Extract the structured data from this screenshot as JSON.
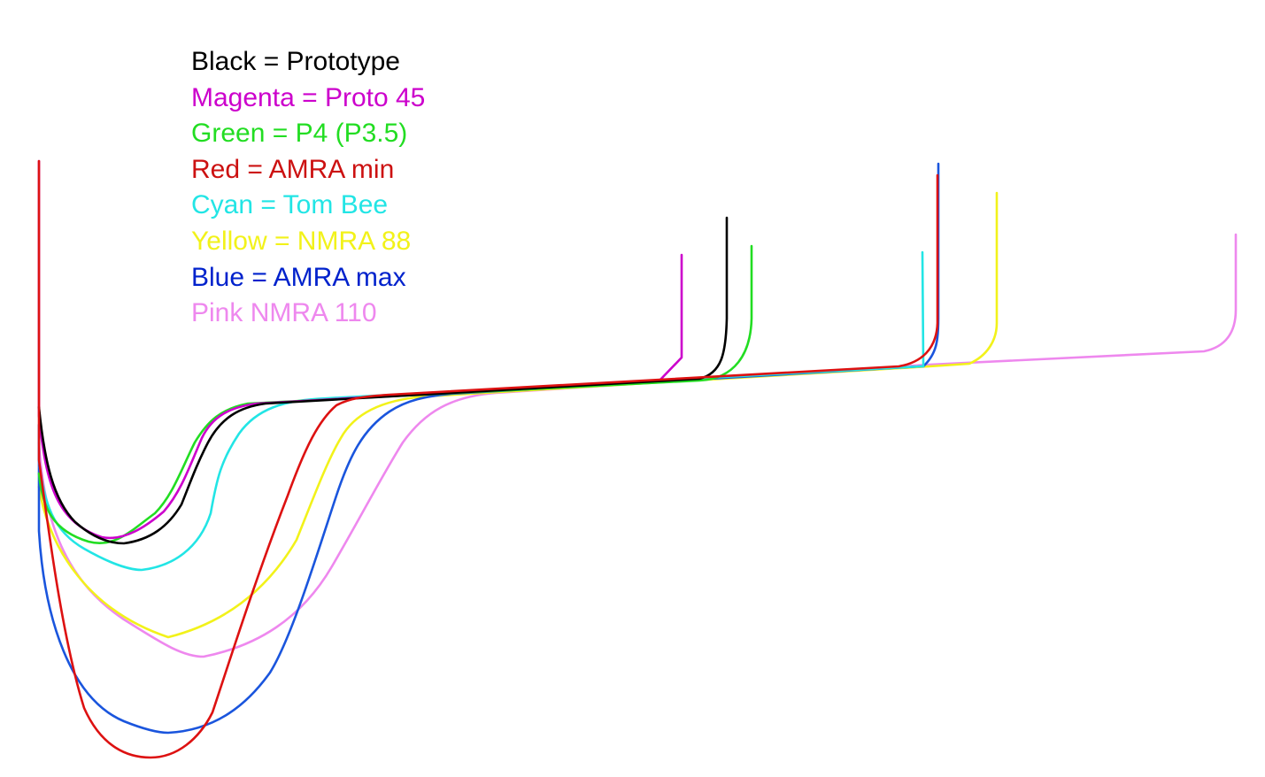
{
  "legend": [
    {
      "text": "Black = Prototype",
      "color": "#000000"
    },
    {
      "text": "Magenta = Proto 45",
      "color": "#cc00cc"
    },
    {
      "text": "Green = P4 (P3.5)",
      "color": "#22dd22"
    },
    {
      "text": "Red = AMRA min",
      "color": "#cc1111"
    },
    {
      "text": "Cyan = Tom Bee",
      "color": "#22e5e5"
    },
    {
      "text": "Yellow = NMRA 88",
      "color": "#f2f21a"
    },
    {
      "text": "Blue = AMRA max",
      "color": "#0022cc"
    },
    {
      "text": "Pink NMRA 110",
      "color": "#ee88ee"
    }
  ],
  "profiles": [
    {
      "key": "pink",
      "color": "#ee88ee"
    },
    {
      "key": "yellow",
      "color": "#f2f21a"
    },
    {
      "key": "blue",
      "color": "#1a55dd"
    },
    {
      "key": "cyan",
      "color": "#22e5e5"
    },
    {
      "key": "green",
      "color": "#22dd22"
    },
    {
      "key": "magenta",
      "color": "#cc00cc"
    },
    {
      "key": "black",
      "color": "#000000"
    },
    {
      "key": "red",
      "color": "#dd1111"
    }
  ]
}
